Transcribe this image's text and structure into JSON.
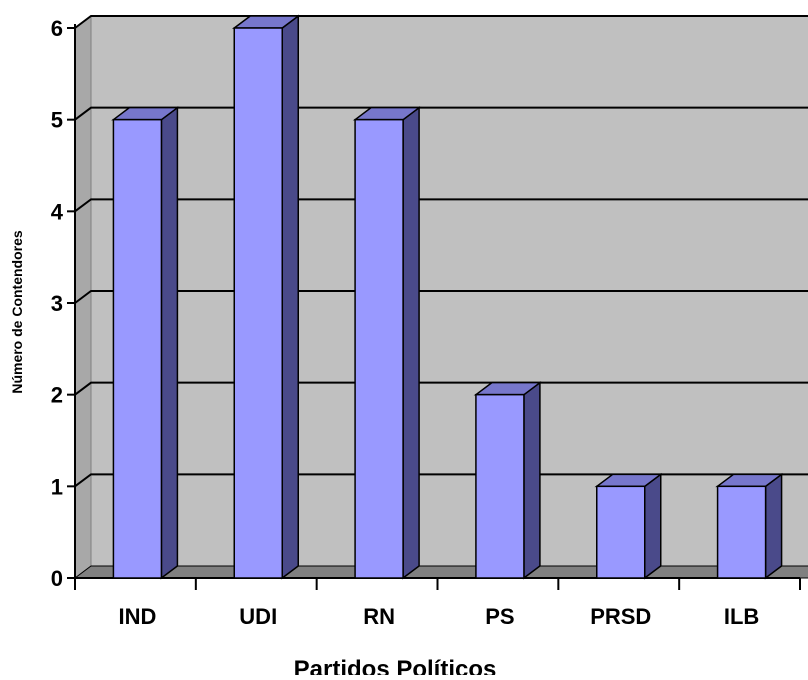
{
  "chart_data": {
    "type": "bar",
    "style": "3d-column",
    "categories": [
      "IND",
      "UDI",
      "RN",
      "PS",
      "PRSD",
      "ILB"
    ],
    "values": [
      5,
      6,
      5,
      2,
      1,
      1
    ],
    "xlabel": "Partidos Políticos",
    "ylabel": "Número de Contendores",
    "ylim": [
      0,
      6
    ],
    "yticks": [
      "0",
      "1",
      "2",
      "3",
      "4",
      "5",
      "6"
    ],
    "grid": true,
    "colors": {
      "bar_front": "#9999ff",
      "bar_side": "#4a4a8a",
      "bar_top": "#7777cc",
      "wall": "#c0c0c0",
      "floor": "#808080",
      "side_wall": "#a8a8a8"
    }
  }
}
